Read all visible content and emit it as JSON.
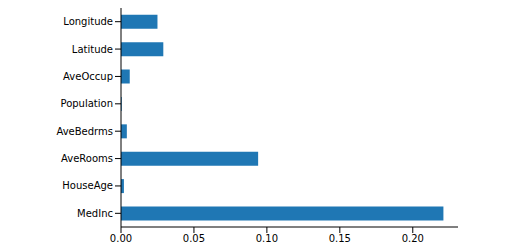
{
  "chart_data": {
    "type": "bar",
    "orientation": "horizontal",
    "categories": [
      "MedInc",
      "HouseAge",
      "AveRooms",
      "AveBedrms",
      "Population",
      "AveOccup",
      "Latitude",
      "Longitude"
    ],
    "values": [
      0.221,
      0.002,
      0.094,
      0.004,
      0.0005,
      0.006,
      0.029,
      0.025
    ],
    "color": "#1f77b4",
    "xlim": [
      0,
      0.231
    ],
    "xticks": [
      {
        "value": 0,
        "label": "0.00"
      },
      {
        "value": 0.05,
        "label": "0.05"
      },
      {
        "value": 0.1,
        "label": "0.10"
      },
      {
        "value": 0.15,
        "label": "0.15"
      },
      {
        "value": 0.2,
        "label": "0.20"
      }
    ],
    "grid": false
  }
}
